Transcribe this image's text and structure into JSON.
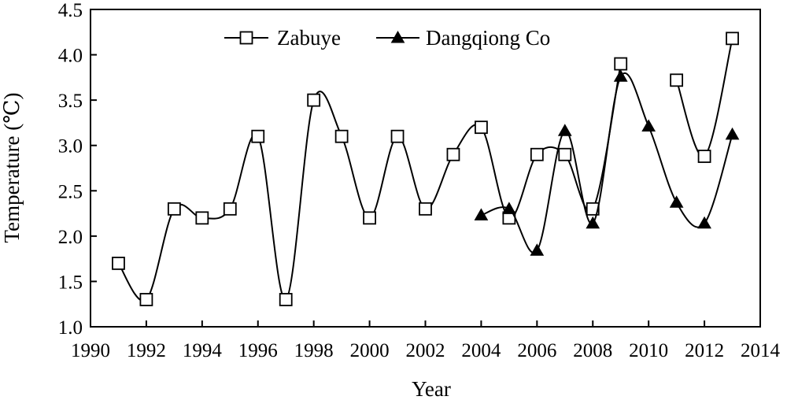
{
  "chart_data": {
    "type": "line",
    "title": "",
    "xlabel": "Year",
    "ylabel": "Temperature (℃)",
    "xlim": [
      1990,
      2014
    ],
    "ylim": [
      1.0,
      4.5
    ],
    "xticks": [
      "1990",
      "1992",
      "1994",
      "1996",
      "1998",
      "2000",
      "2002",
      "2004",
      "2006",
      "2008",
      "2010",
      "2012",
      "2014"
    ],
    "yticks": [
      "1.0",
      "1.5",
      "2.0",
      "2.5",
      "3.0",
      "3.5",
      "4.0",
      "4.5"
    ],
    "grid": false,
    "legend_position": "top-center",
    "series": [
      {
        "name": "Zabuye",
        "marker": "open-square",
        "color": "#000000",
        "segments": [
          {
            "x": [
              1991,
              1992,
              1993,
              1994,
              1995,
              1996,
              1997,
              1998,
              1999,
              2000,
              2001,
              2002,
              2003,
              2004,
              2005,
              2006,
              2007,
              2008,
              2009
            ],
            "y": [
              1.7,
              1.3,
              2.3,
              2.2,
              2.3,
              3.1,
              1.3,
              3.5,
              3.1,
              2.2,
              3.1,
              2.3,
              2.9,
              3.2,
              2.2,
              2.9,
              2.9,
              2.3,
              3.9
            ]
          },
          {
            "x": [
              2011,
              2012,
              2013
            ],
            "y": [
              3.72,
              2.88,
              4.18
            ]
          }
        ]
      },
      {
        "name": "Dangqiong Co",
        "marker": "filled-triangle",
        "color": "#000000",
        "segments": [
          {
            "x": [
              2004,
              2005,
              2006,
              2007,
              2008,
              2009,
              2010,
              2011,
              2012,
              2013
            ],
            "y": [
              2.23,
              2.3,
              1.84,
              3.16,
              2.14,
              3.76,
              3.21,
              2.37,
              2.14,
              3.12
            ]
          }
        ]
      }
    ]
  }
}
